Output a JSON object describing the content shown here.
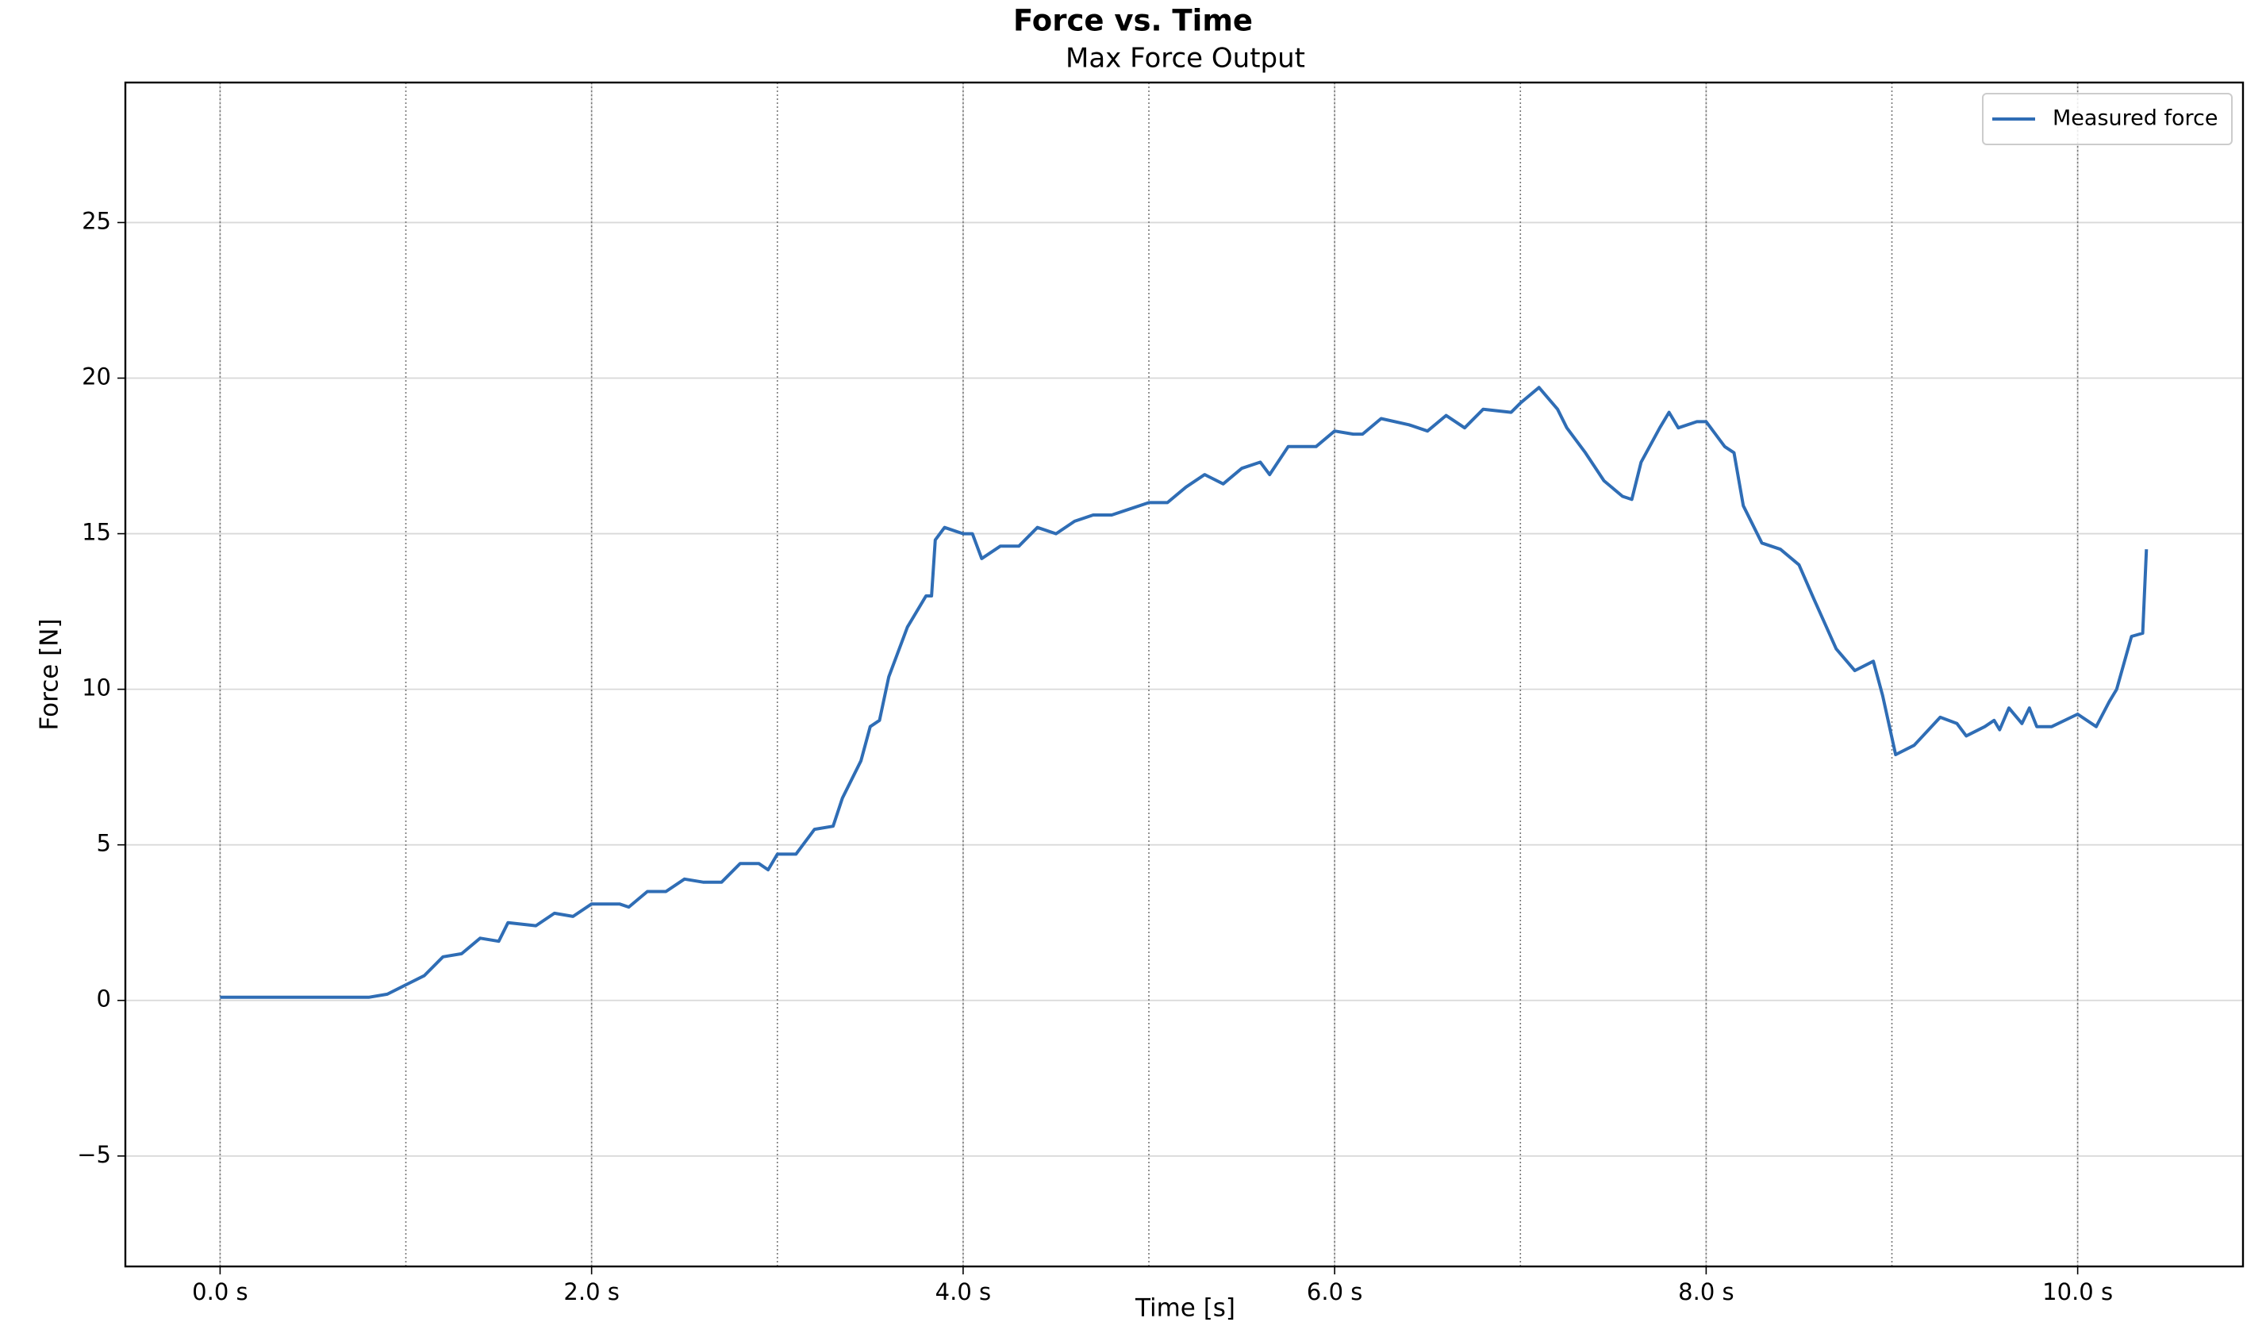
{
  "chart_data": {
    "type": "line",
    "title": "Force vs. Time",
    "subtitle": "Max Force Output",
    "x_label": "Time [s]",
    "y_label": "Force [N]",
    "x": [
      0,
      0.5,
      0.8,
      0.9,
      1.0,
      1.1,
      1.2,
      1.3,
      1.4,
      1.5,
      1.55,
      1.7,
      1.8,
      1.9,
      2.0,
      2.15,
      2.2,
      2.3,
      2.4,
      2.5,
      2.6,
      2.7,
      2.8,
      2.9,
      2.95,
      3.0,
      3.1,
      3.2,
      3.3,
      3.35,
      3.45,
      3.5,
      3.55,
      3.6,
      3.7,
      3.8,
      3.83,
      3.85,
      3.9,
      4.0,
      4.05,
      4.1,
      4.2,
      4.3,
      4.4,
      4.5,
      4.6,
      4.7,
      4.8,
      4.9,
      5.0,
      5.1,
      5.2,
      5.3,
      5.4,
      5.5,
      5.6,
      5.65,
      5.75,
      5.9,
      6.0,
      6.1,
      6.15,
      6.25,
      6.4,
      6.5,
      6.6,
      6.7,
      6.8,
      6.95,
      7.0,
      7.1,
      7.2,
      7.25,
      7.35,
      7.45,
      7.55,
      7.6,
      7.65,
      7.75,
      7.8,
      7.85,
      7.95,
      8.0,
      8.1,
      8.15,
      8.2,
      8.3,
      8.4,
      8.5,
      8.58,
      8.7,
      8.8,
      8.9,
      8.95,
      9.02,
      9.12,
      9.26,
      9.35,
      9.4,
      9.5,
      9.55,
      9.58,
      9.63,
      9.7,
      9.74,
      9.78,
      9.86,
      10.0,
      10.1,
      10.17,
      10.21,
      10.29,
      10.35,
      10.37
    ],
    "series": [
      {
        "name": "Measured force",
        "color": "#2f6db5",
        "values": [
          0.1,
          0.1,
          0.1,
          0.2,
          0.5,
          0.8,
          1.4,
          1.5,
          2.0,
          1.9,
          2.5,
          2.4,
          2.8,
          2.7,
          3.1,
          3.1,
          3.0,
          3.5,
          3.5,
          3.9,
          3.8,
          3.8,
          4.4,
          4.4,
          4.2,
          4.7,
          4.7,
          5.5,
          5.6,
          6.5,
          7.7,
          8.8,
          9.0,
          10.4,
          12.0,
          13.0,
          13.0,
          14.8,
          15.2,
          15.0,
          15.0,
          14.2,
          14.6,
          14.6,
          15.2,
          15.0,
          15.4,
          15.6,
          15.6,
          15.8,
          16.0,
          16.0,
          16.5,
          16.9,
          16.6,
          17.1,
          17.3,
          16.9,
          17.8,
          17.8,
          18.3,
          18.2,
          18.2,
          18.7,
          18.5,
          18.3,
          18.8,
          18.4,
          19.0,
          18.9,
          19.2,
          19.7,
          19.0,
          18.4,
          17.6,
          16.7,
          16.2,
          16.1,
          17.3,
          18.4,
          18.9,
          18.4,
          18.6,
          18.6,
          17.8,
          17.6,
          15.9,
          14.7,
          14.5,
          14.0,
          12.9,
          11.3,
          10.6,
          10.9,
          9.8,
          7.9,
          8.2,
          9.1,
          8.9,
          8.5,
          8.8,
          9.0,
          8.7,
          9.4,
          8.9,
          9.4,
          8.8,
          8.8,
          9.2,
          8.8,
          9.6,
          10.0,
          11.7,
          11.8,
          14.5
        ]
      }
    ],
    "xlim": [
      -0.51,
      10.89
    ],
    "ylim": [
      -8.55,
      29.5
    ],
    "xticks": [
      {
        "value": 0,
        "label": "0.0 s"
      },
      {
        "value": 2,
        "label": "2.0 s"
      },
      {
        "value": 4,
        "label": "4.0 s"
      },
      {
        "value": 6,
        "label": "6.0 s"
      },
      {
        "value": 8,
        "label": "8.0 s"
      },
      {
        "value": 10,
        "label": "10.0 s"
      }
    ],
    "yticks": [
      {
        "value": -5,
        "label": "−5"
      },
      0,
      5,
      10,
      15,
      20,
      25
    ],
    "vlines": [
      0,
      1,
      2,
      3,
      4,
      5,
      6,
      7,
      8,
      9,
      10
    ],
    "grid": true,
    "legend": "upper right"
  }
}
